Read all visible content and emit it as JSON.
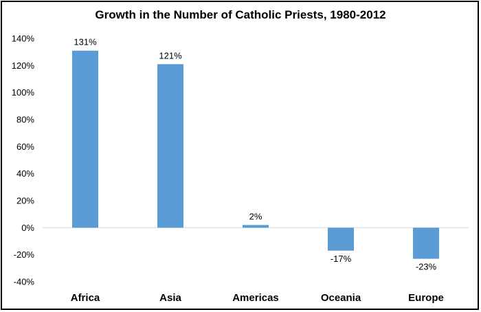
{
  "chart_data": {
    "type": "bar",
    "title": "Growth in the Number of Catholic Priests, 1980-2012",
    "categories": [
      "Africa",
      "Asia",
      "Americas",
      "Oceania",
      "Europe"
    ],
    "values": [
      131,
      121,
      2,
      -17,
      -23
    ],
    "data_labels": [
      "131%",
      "121%",
      "2%",
      "-17%",
      "-23%"
    ],
    "ylim": [
      -40,
      140
    ],
    "yticks": [
      140,
      120,
      100,
      80,
      60,
      40,
      20,
      0,
      -20,
      -40
    ],
    "ytick_labels": [
      "140%",
      "120%",
      "100%",
      "80%",
      "60%",
      "40%",
      "20%",
      "0%",
      "-20%",
      "-40%"
    ],
    "xlabel": "",
    "ylabel": "",
    "grid": false,
    "legend": "none",
    "bar_color": "#5b9bd5",
    "axis_color": "#d9d9d9"
  }
}
